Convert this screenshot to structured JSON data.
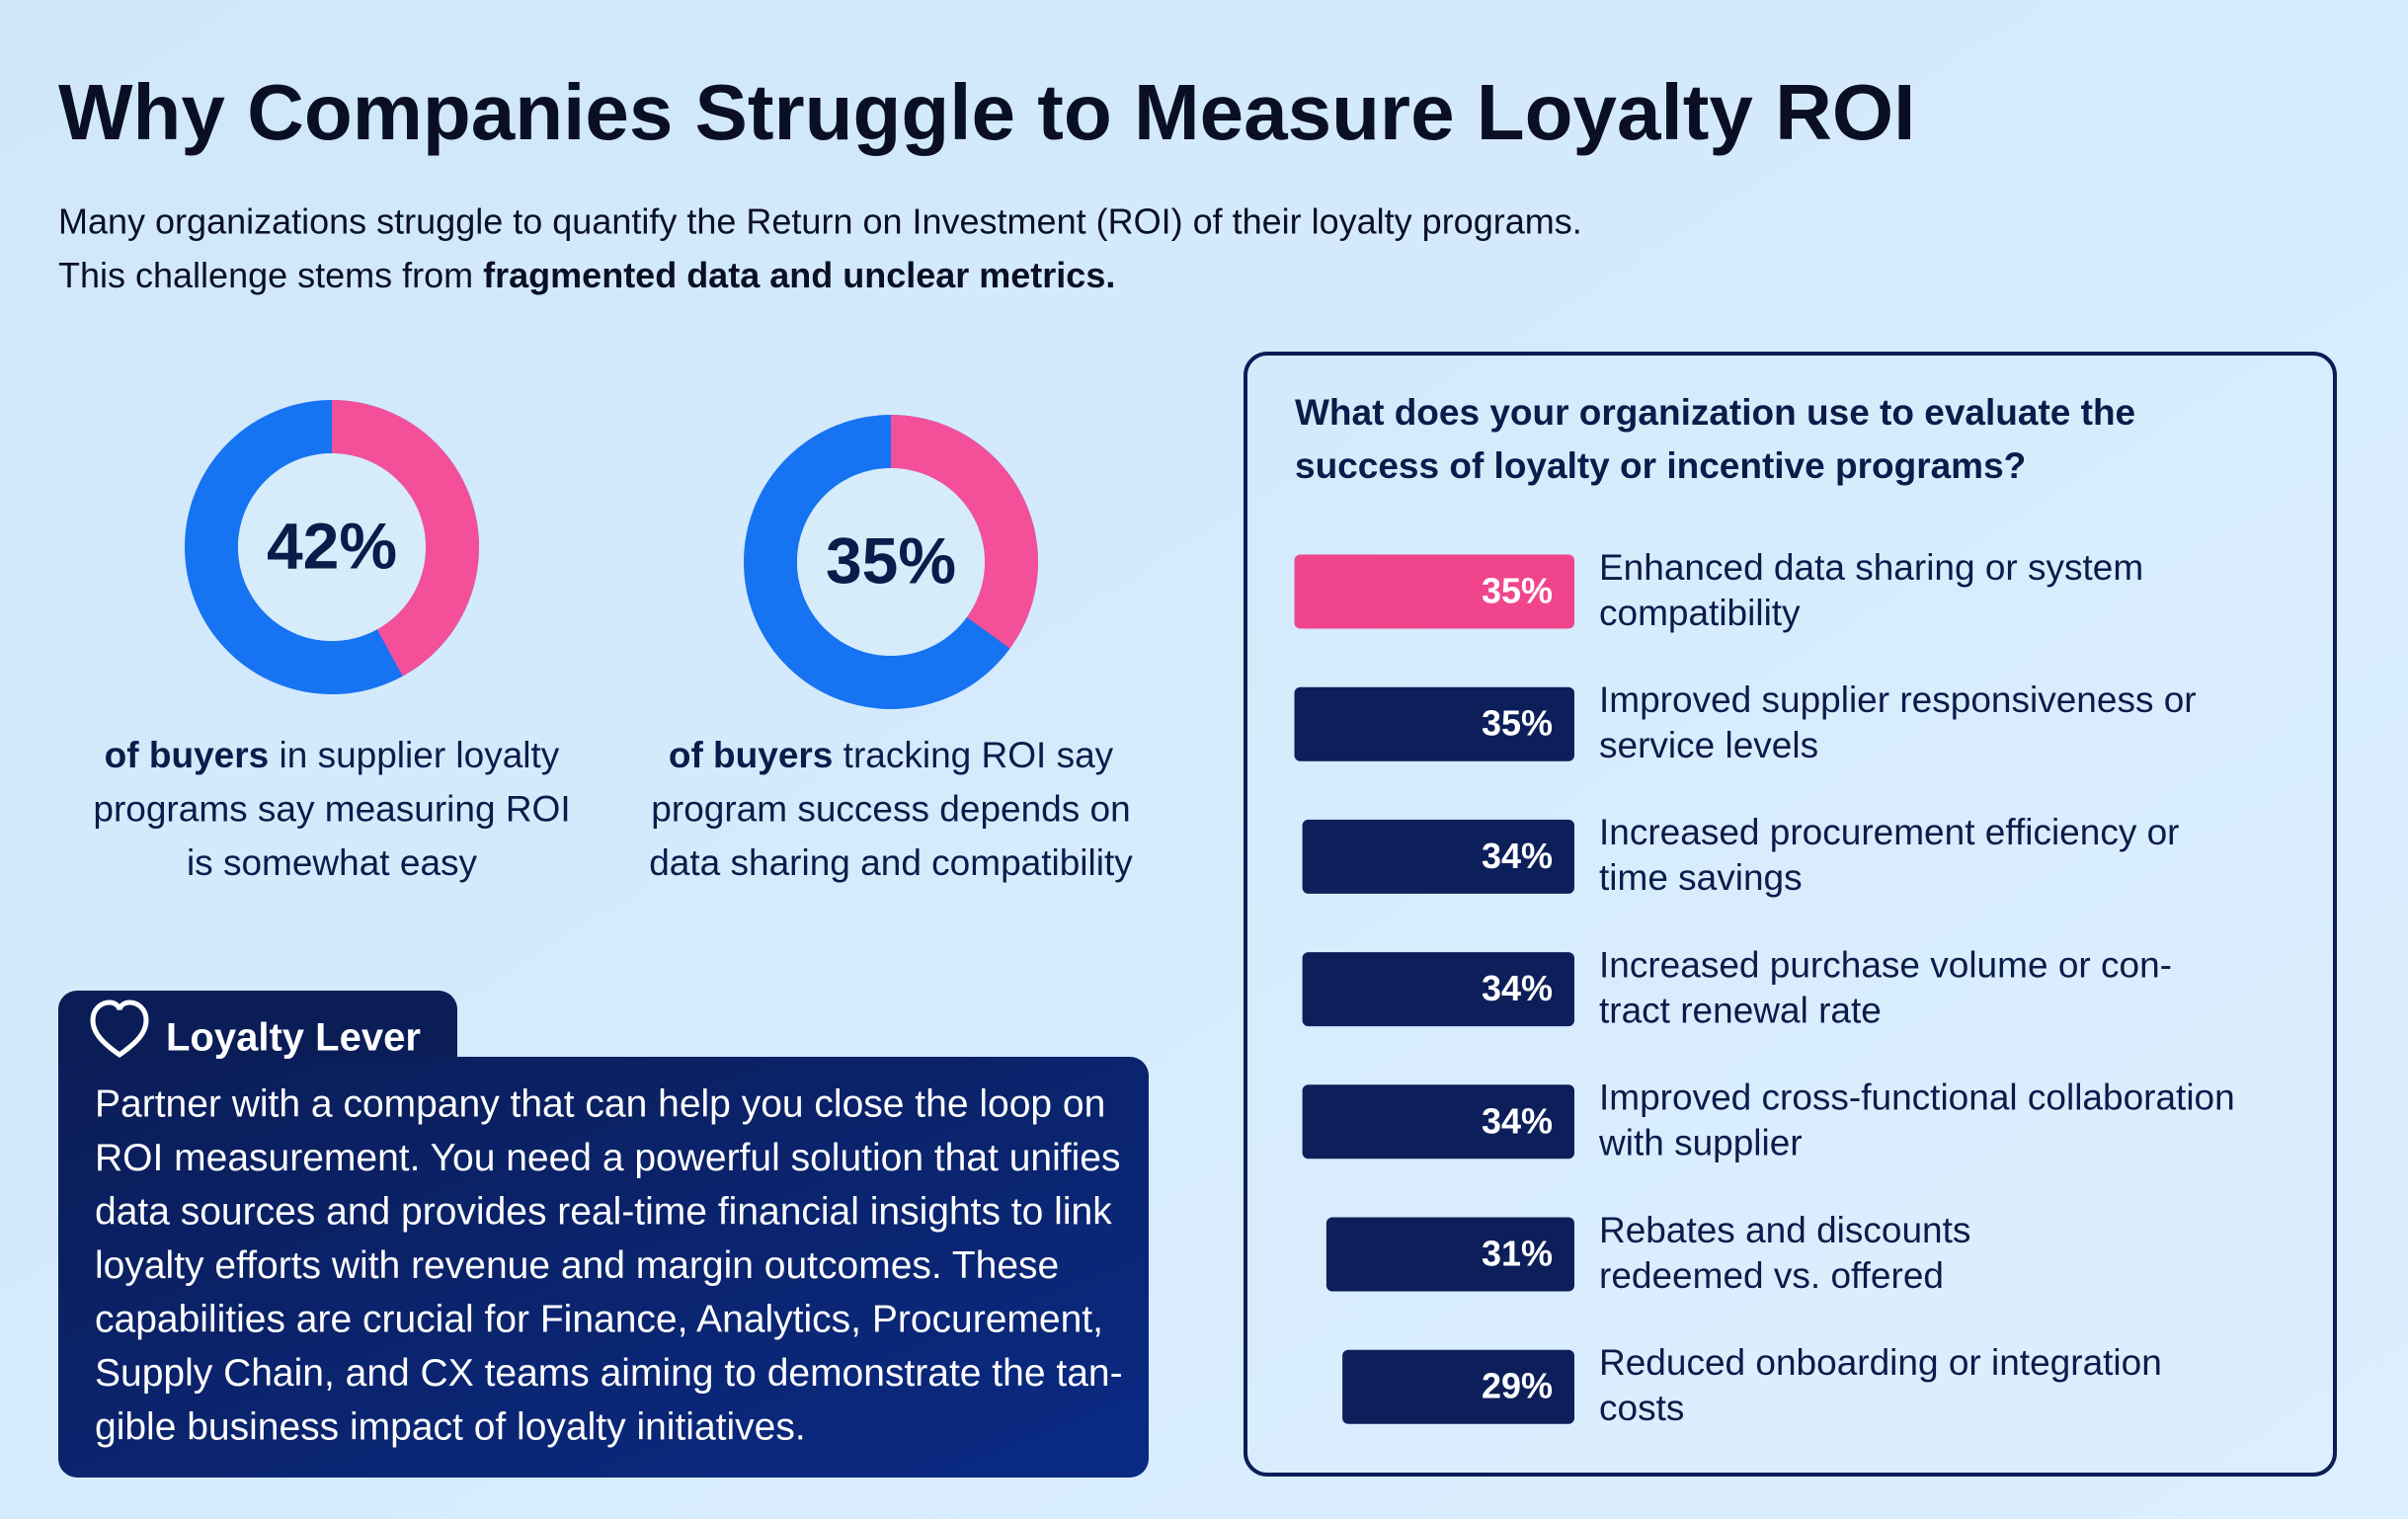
{
  "header": {
    "title": "Why Companies Struggle to Measure Loyalty ROI",
    "subtitle_line1": "Many organizations struggle to quantify the Return on Investment (ROI) of their loyalty programs.",
    "subtitle_line2": "This challenge stems from ",
    "subtitle_bold": "fragmented data and unclear metrics."
  },
  "chart_data": [
    {
      "type": "pie",
      "values": [
        42
      ],
      "value_labels": [
        "42%"
      ],
      "color": "#f4509a",
      "ring_color": "#1673f2",
      "caption_bold": "of buyers",
      "caption_lines": [
        " in supplier loyalty",
        "programs say measuring ROI",
        "is somewhat easy"
      ]
    },
    {
      "type": "pie",
      "values": [
        35
      ],
      "value_labels": [
        "35%"
      ],
      "color": "#f4509a",
      "ring_color": "#1673f2",
      "caption_bold": "of buyers",
      "caption_lines": [
        " tracking ROI say",
        "program success depends on",
        "data sharing and compatibility"
      ]
    },
    {
      "type": "bar",
      "title": [
        "What does your organization use to evaluate the",
        "success of loyalty or incentive programs?"
      ],
      "categories": [
        [
          "Enhanced data sharing or system",
          "compatibility"
        ],
        [
          "Improved supplier responsiveness or",
          "service levels"
        ],
        [
          "Increased procurement efficiency or",
          "time savings"
        ],
        [
          "Increased purchase volume or con-",
          "tract renewal rate"
        ],
        [
          "Improved cross-functional collaboration",
          "with supplier"
        ],
        [
          "Rebates and discounts",
          "redeemed vs. offered"
        ],
        [
          "Reduced onboarding or integration",
          "costs"
        ]
      ],
      "values": [
        35,
        35,
        34,
        34,
        34,
        31,
        29
      ],
      "value_labels": [
        "35%",
        "35%",
        "34%",
        "34%",
        "34%",
        "31%",
        "29%"
      ],
      "colors": [
        "#f0458d",
        "#0d1f5a",
        "#0d1f5a",
        "#0d1f5a",
        "#0d1f5a",
        "#0d1f5a",
        "#0d1f5a"
      ]
    }
  ],
  "callout": {
    "title": "Loyalty Lever",
    "lines": [
      "Partner with a company that can help you close the loop on",
      "ROI measurement. You need a powerful solution that unifies",
      "data sources and provides real-time financial insights to link",
      "loyalty efforts with revenue and margin outcomes. These",
      "capabilities are crucial for Finance, Analytics, Procurement,",
      "Supply Chain, and CX teams aiming to demonstrate the tan-",
      "gible business impact of loyalty initiatives."
    ]
  }
}
